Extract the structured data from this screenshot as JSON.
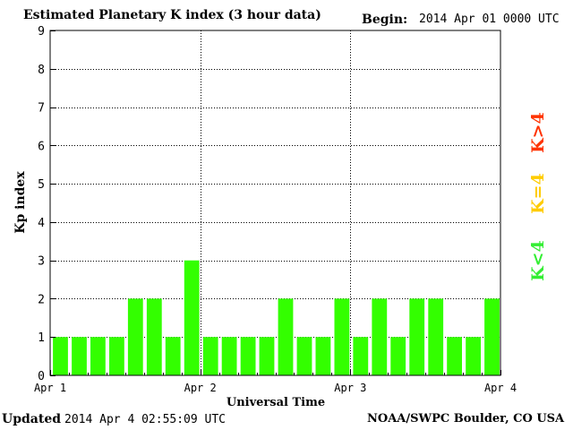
{
  "header": {
    "title": "Estimated Planetary K index (3 hour data)",
    "begin_label": "Begin:",
    "begin_value": "2014 Apr 01 0000 UTC"
  },
  "footer": {
    "updated_label": "Updated",
    "updated_value": "2014 Apr  4 02:55:09 UTC",
    "credit": "NOAA/SWPC Boulder, CO USA"
  },
  "legend": [
    {
      "label": "K<4",
      "color": "#33ee33"
    },
    {
      "label": "K=4",
      "color": "#ffcc00"
    },
    {
      "label": "K>4",
      "color": "#ff3300"
    }
  ],
  "chart_data": {
    "type": "bar",
    "title": "Estimated Planetary K index (3 hour data)",
    "xlabel": "Universal Time",
    "ylabel": "Kp index",
    "ylim": [
      0,
      9
    ],
    "yticks": [
      0,
      1,
      2,
      3,
      4,
      5,
      6,
      7,
      8,
      9
    ],
    "xtick_labels": [
      "Apr 1",
      "Apr 2",
      "Apr 3",
      "Apr 4"
    ],
    "grid": true,
    "bar_color": "#33ff00",
    "values": [
      1,
      1,
      1,
      1,
      2,
      2,
      1,
      3,
      1,
      1,
      1,
      1,
      2,
      1,
      1,
      2,
      1,
      2,
      1,
      2,
      2,
      1,
      1,
      2
    ]
  }
}
